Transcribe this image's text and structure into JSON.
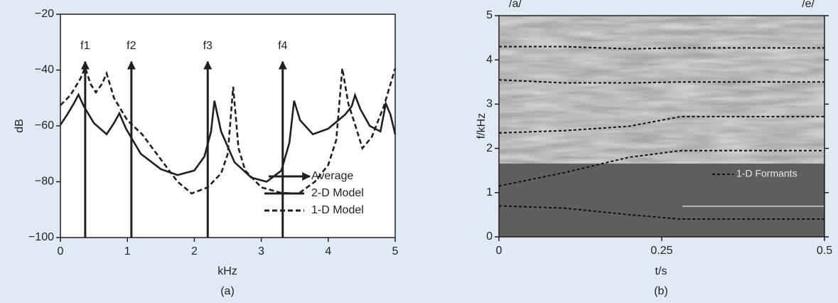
{
  "chart_data": [
    {
      "type": "line",
      "xlabel": "kHz",
      "ylabel": "dB",
      "caption": "(a)",
      "xlim": [
        0,
        5
      ],
      "ylim": [
        -100,
        -20
      ],
      "xticks": [
        0,
        1,
        2,
        3,
        4,
        5
      ],
      "yticks": [
        {
          "value": -100,
          "label": "−100"
        },
        {
          "value": -80,
          "label": "−80"
        },
        {
          "value": -60,
          "label": "−60"
        },
        {
          "value": -40,
          "label": "−40"
        },
        {
          "value": -20,
          "label": "−20"
        }
      ],
      "series": [
        {
          "name": "2-D Model",
          "color": "#231f20",
          "dashed": false,
          "x": [
            0,
            0.1,
            0.2,
            0.27,
            0.35,
            0.5,
            0.69,
            0.8,
            0.88,
            0.98,
            1.2,
            1.5,
            1.75,
            2.0,
            2.15,
            2.25,
            2.3,
            2.4,
            2.6,
            2.85,
            3.08,
            3.3,
            3.42,
            3.49,
            3.58,
            3.77,
            4.0,
            4.25,
            4.35,
            4.4,
            4.48,
            4.62,
            4.78,
            4.86,
            4.93,
            5.0
          ],
          "values": [
            -59.6,
            -56,
            -52,
            -48.8,
            -53,
            -59,
            -63,
            -59,
            -55.5,
            -61,
            -70,
            -75.5,
            -77.6,
            -76,
            -71,
            -62,
            -51,
            -62,
            -73,
            -78.5,
            -80,
            -76,
            -66,
            -51,
            -58,
            -63,
            -61,
            -56,
            -53,
            -49,
            -54,
            -60,
            -62,
            -52,
            -56,
            -63
          ]
        },
        {
          "name": "1-D Model",
          "color": "#231f20",
          "dashed": true,
          "x": [
            0,
            0.15,
            0.3,
            0.37,
            0.45,
            0.53,
            0.62,
            0.69,
            0.8,
            1.0,
            1.22,
            1.5,
            1.75,
            1.96,
            2.2,
            2.4,
            2.5,
            2.58,
            2.66,
            2.76,
            3.0,
            3.3,
            3.56,
            3.8,
            4.0,
            4.12,
            4.21,
            4.3,
            4.4,
            4.51,
            4.65,
            4.83,
            5.0
          ],
          "values": [
            -52.6,
            -49,
            -43,
            -39.1,
            -45,
            -48,
            -45,
            -41.2,
            -50,
            -58,
            -63,
            -72,
            -80,
            -84.2,
            -82,
            -77,
            -70,
            -46,
            -68,
            -76,
            -82,
            -84,
            -84.2,
            -80,
            -74,
            -65,
            -39.4,
            -52,
            -59.5,
            -68,
            -64,
            -53,
            -39.4
          ]
        }
      ],
      "arrows": {
        "name": "Average",
        "color": "#231f20",
        "labels": [
          "f1",
          "f2",
          "f3",
          "f4"
        ],
        "x": [
          0.37,
          1.06,
          2.2,
          3.32
        ],
        "values": [
          -37,
          -37,
          -37,
          -37
        ]
      },
      "legend": "lower right"
    },
    {
      "type": "spectrogram",
      "xlabel": "t/s",
      "ylabel": "f/kHz",
      "caption": "(b)",
      "annotations": [
        "/a/",
        "/e/"
      ],
      "xlim": [
        0,
        0.5
      ],
      "ylim": [
        0,
        5
      ],
      "xticks": [
        0,
        0.25,
        0.5
      ],
      "yticks": [
        0,
        1,
        2,
        3,
        4,
        5
      ],
      "x": [
        0,
        0.1,
        0.2,
        0.28,
        0.5
      ],
      "series": [
        {
          "name": "1-D Formants",
          "color": "#111111",
          "values": [
            [
              0.7,
              0.65,
              0.5,
              0.4,
              0.4
            ],
            [
              1.15,
              1.45,
              1.8,
              1.95,
              1.95
            ],
            [
              2.35,
              2.4,
              2.5,
              2.72,
              2.72
            ],
            [
              3.55,
              3.48,
              3.48,
              3.5,
              3.5
            ],
            [
              4.3,
              4.3,
              4.25,
              4.27,
              4.27
            ]
          ]
        }
      ],
      "legend": "right"
    }
  ]
}
